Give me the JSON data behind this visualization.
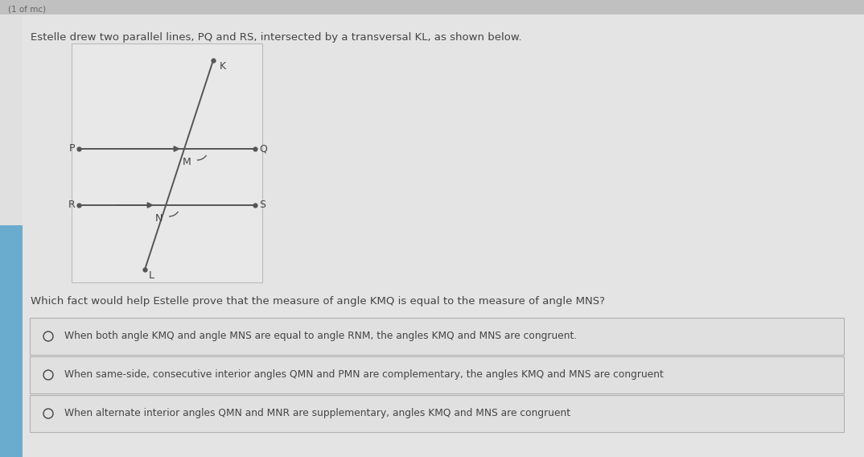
{
  "bg_main": "#dcdcdc",
  "bg_right": "#d8d8d8",
  "bg_left_strip": "#a8c8e8",
  "top_bar_color": "#c0c0c0",
  "diagram_bg": "#e8e8e8",
  "title_text": "Estelle drew two parallel lines, PQ and RS, intersected by a transversal KL, as shown below.",
  "question_text": "Which fact would help Estelle prove that the measure of angle KMQ is equal to the measure of angle MNS?",
  "options": [
    "When both angle KMQ and angle MNS are equal to angle RNM, the angles KMQ and MNS are congruent.",
    "When same-side, consecutive interior angles QMN and PMN are complementary, the angles KMQ and MNS are congruent",
    "When alternate interior angles QMN and MNR are supplementary, angles KMQ and MNS are congruent"
  ],
  "line_color": "#555555",
  "text_color": "#444444",
  "option_bg": "#e0e0e0",
  "option_border": "#b0b0b0",
  "top_bar_text": "(1 of mc)"
}
